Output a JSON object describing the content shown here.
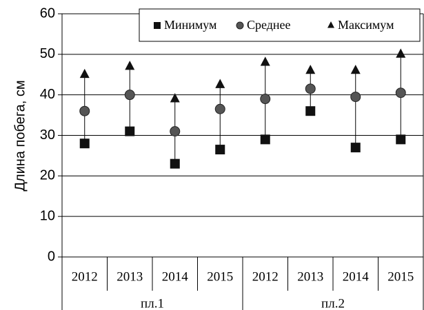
{
  "chart_data": {
    "type": "range-dot",
    "y_label": "Длина побега, см",
    "categories": [
      "2012",
      "2013",
      "2014",
      "2015",
      "2012",
      "2013",
      "2014",
      "2015"
    ],
    "groups": [
      {
        "label": "пл.1",
        "span": 4
      },
      {
        "label": "пл.2",
        "span": 4
      }
    ],
    "series": [
      {
        "name": "Минимум",
        "marker": "square",
        "color": "#111111",
        "values": [
          28,
          31,
          23,
          26.5,
          29,
          36,
          27,
          29
        ]
      },
      {
        "name": "Среднее",
        "marker": "circle",
        "color": "#555555",
        "values": [
          36,
          40,
          31,
          36.5,
          39,
          41.5,
          39.5,
          40.5
        ]
      },
      {
        "name": "Максимум",
        "marker": "triangle",
        "color": "#111111",
        "values": [
          45,
          47,
          39,
          42.5,
          48,
          46,
          46,
          50
        ]
      }
    ],
    "ylim": [
      0,
      60
    ],
    "yticks": [
      0,
      10,
      20,
      30,
      40,
      50,
      60
    ],
    "grid": true
  }
}
